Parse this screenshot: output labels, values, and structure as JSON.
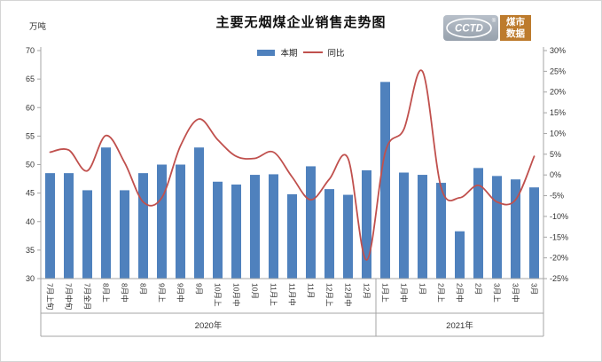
{
  "header": {
    "title": "主要无烟煤企业销售走势图",
    "unit_label": "万吨"
  },
  "legend": {
    "bar_label": "本期",
    "line_label": "同比"
  },
  "logo": {
    "brand": "CCTD",
    "reg_mark": "®",
    "tagline_line1": "煤市",
    "tagline_line2": "数据"
  },
  "chart_data": {
    "type": "bar+line combo, dual y-axis",
    "categories": [
      "7月上旬",
      "7月中旬",
      "7月全月",
      "8月上",
      "8月中",
      "8月",
      "9月上",
      "9月中",
      "9月",
      "10月上",
      "10月中",
      "10月",
      "11月上",
      "11月中",
      "11月",
      "12月上",
      "12月中",
      "12月",
      "1月上",
      "1月中",
      "1月",
      "2月上",
      "2月中",
      "2月",
      "3月上",
      "3月中",
      "3月"
    ],
    "series": [
      {
        "name": "本期",
        "type": "bar",
        "axis": "left",
        "unit": "万吨",
        "values": [
          48.5,
          48.5,
          45.5,
          53,
          45.5,
          48.5,
          50,
          50,
          53,
          47,
          46.5,
          48.2,
          48.3,
          44.8,
          49.7,
          45.7,
          44.7,
          49,
          64.5,
          48.6,
          48.2,
          46.8,
          38.3,
          49.4,
          48,
          47.4,
          46
        ]
      },
      {
        "name": "同比",
        "type": "line",
        "axis": "right",
        "unit": "%",
        "values": [
          5.5,
          6,
          1,
          9.5,
          3,
          -6.5,
          -5.5,
          7,
          13.5,
          8.5,
          4.5,
          4,
          5.5,
          -0.5,
          -6,
          -1,
          4,
          -20.5,
          5.5,
          11,
          25,
          -3,
          -5.5,
          -2.5,
          -6.5,
          -6,
          4.5
        ]
      }
    ],
    "left_axis": {
      "title": "万吨",
      "min": 30,
      "max": 70,
      "step": 5,
      "tick_labels": [
        "70",
        "65",
        "60",
        "55",
        "50",
        "45",
        "40",
        "35",
        "30"
      ]
    },
    "right_axis": {
      "min": -25,
      "max": 30,
      "step": 5,
      "tick_labels": [
        "30%",
        "25%",
        "20%",
        "15%",
        "10%",
        "5%",
        "0%",
        "-5%",
        "-10%",
        "-15%",
        "-20%",
        "-25%"
      ]
    },
    "year_groups": [
      {
        "label": "2020年",
        "span": 18
      },
      {
        "label": "2021年",
        "span": 9
      }
    ],
    "colors": {
      "bar": "#4f81bd",
      "line": "#c0504d",
      "axis": "#a6a6a6",
      "tick_text": "#333333"
    },
    "grid": false,
    "legend_position": "top-center",
    "line_style": "smoothed"
  }
}
